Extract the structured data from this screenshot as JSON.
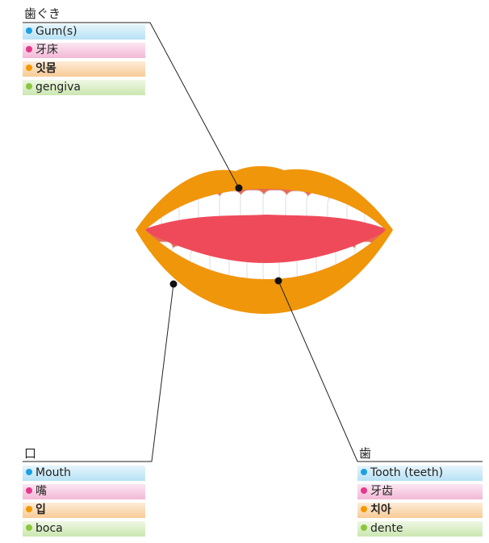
{
  "groups": [
    {
      "heading": "歯ぐき",
      "items": [
        "Gum(s)",
        "牙床",
        "잇몸",
        "gengiva"
      ]
    },
    {
      "heading": "口",
      "items": [
        "Mouth",
        "嘴",
        "입",
        "boca"
      ]
    },
    {
      "heading": "歯",
      "items": [
        "Tooth (teeth)",
        "牙齿",
        "치아",
        "dente"
      ]
    }
  ]
}
